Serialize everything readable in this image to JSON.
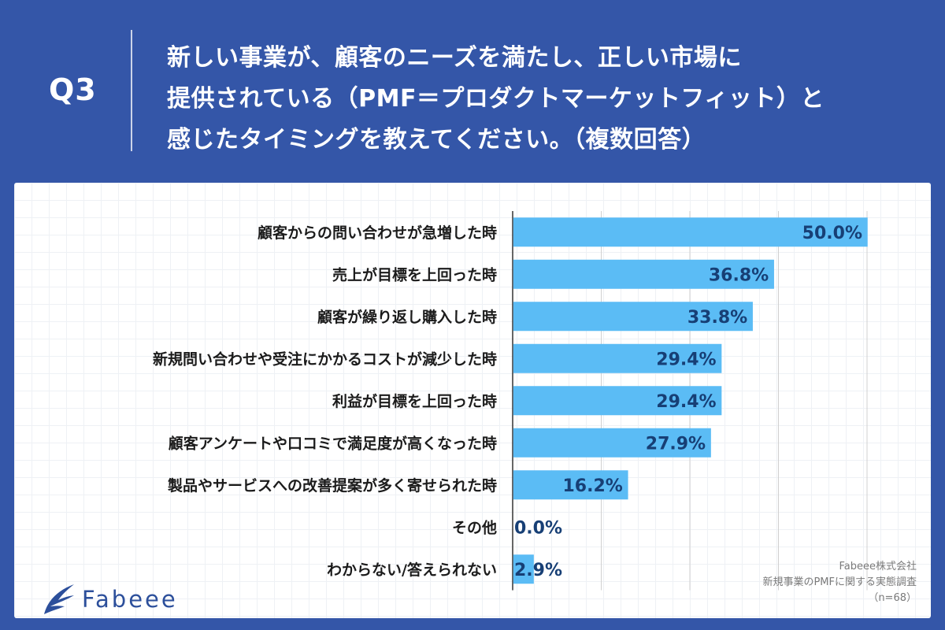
{
  "header": {
    "q_number": "Q3",
    "question_lines": [
      "新しい事業が、顧客のニーズを満たし、正しい市場に",
      "提供されている（PMF＝プロダクトマーケットフィット）と",
      "感じたタイミングを教えてください。（複数回答）"
    ]
  },
  "chart_data": {
    "type": "bar",
    "orientation": "horizontal",
    "title": "新しい事業が、顧客のニーズを満たし、正しい市場に提供されている（PMF＝プロダクトマーケットフィット）と感じたタイミングを教えてください。（複数回答）",
    "xlabel": "",
    "ylabel": "",
    "xlim": [
      0,
      50
    ],
    "grid": true,
    "categories": [
      "顧客からの問い合わせが急増した時",
      "売上が目標を上回った時",
      "顧客が繰り返し購入した時",
      "新規問い合わせや受注にかかるコストが減少した時",
      "利益が目標を上回った時",
      "顧客アンケートや口コミで満足度が高くなった時",
      "製品やサービスへの改善提案が多く寄せられた時",
      "その他",
      "わからない/答えられない"
    ],
    "values": [
      50.0,
      36.8,
      33.8,
      29.4,
      29.4,
      27.9,
      16.2,
      0.0,
      2.9
    ],
    "value_labels": [
      "50.0%",
      "36.8%",
      "33.8%",
      "29.4%",
      "29.4%",
      "27.9%",
      "16.2%",
      "0.0%",
      "2.9%"
    ],
    "colors": {
      "bar": "#5bbcf5",
      "value_text": "#173f75",
      "gridline": "#d0d0d0",
      "axis": "#333333"
    }
  },
  "logo": {
    "text": "Fabeee",
    "icon": "fabeee-wing-icon"
  },
  "source": {
    "company": "Fabeee株式会社",
    "survey": "新規事業のPMFに関する実態調査",
    "sample": "（n=68）"
  },
  "colors": {
    "background": "#3456a8",
    "header_text": "#ffffff",
    "logo": "#2c4f9b"
  }
}
